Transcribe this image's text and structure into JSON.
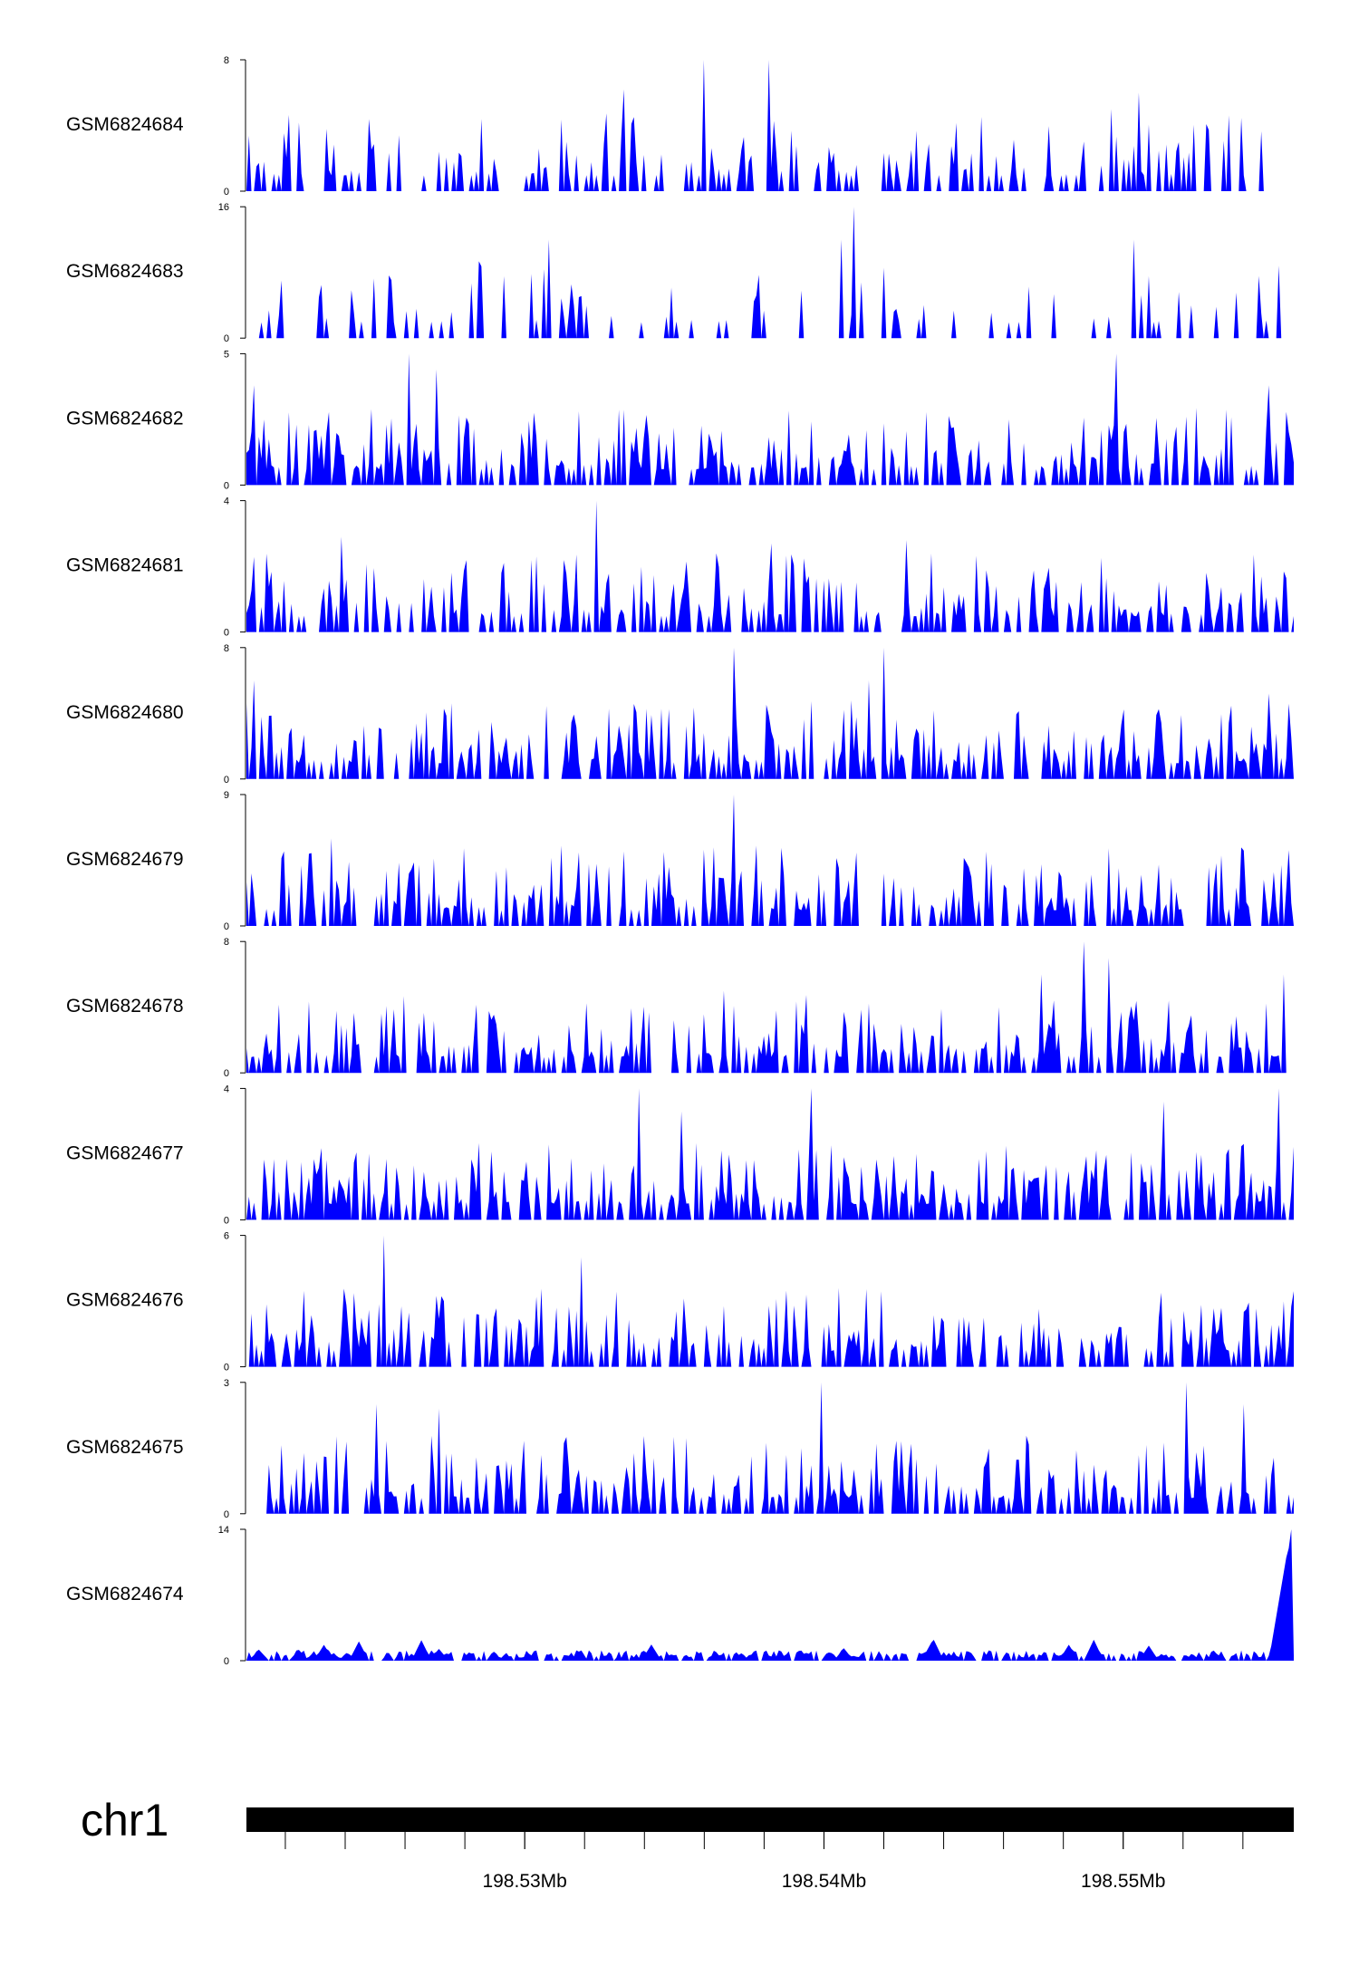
{
  "chart_data": {
    "type": "area",
    "title": "",
    "chromosome": "chr1",
    "x_range_mb": [
      198.5207,
      198.5557
    ],
    "x_ticks": [
      {
        "value": 198.53,
        "label": "198.53Mb"
      },
      {
        "value": 198.54,
        "label": "198.54Mb"
      },
      {
        "value": 198.55,
        "label": "198.55Mb"
      }
    ],
    "minor_tick_step_mb": 0.002,
    "series_color": "#0000ff",
    "tracks": [
      {
        "name": "GSM6824684",
        "ymax": 8,
        "ymin_label": "0",
        "ymax_label": "8",
        "seed": 684,
        "density": 0.35,
        "smooth": false,
        "peaks": [
          [
            0.437,
            8
          ],
          [
            0.498,
            8
          ],
          [
            0.852,
            6
          ],
          [
            0.36,
            6.2
          ],
          [
            0.825,
            5
          ]
        ]
      },
      {
        "name": "GSM6824683",
        "ymax": 16,
        "ymin_label": "0",
        "ymax_label": "16",
        "seed": 683,
        "density": 0.18,
        "smooth": false,
        "peaks": [
          [
            0.289,
            12
          ],
          [
            0.581,
            16
          ],
          [
            0.569,
            12
          ],
          [
            0.848,
            12
          ],
          [
            0.0,
            0.0
          ]
        ]
      },
      {
        "name": "GSM6824682",
        "ymax": 5,
        "ymin_label": "0",
        "ymax_label": "5",
        "seed": 682,
        "density": 0.55,
        "smooth": false,
        "peaks": [
          [
            0.154,
            5
          ],
          [
            0.83,
            5
          ],
          [
            0.182,
            4.4
          ],
          [
            0.975,
            3.8
          ],
          [
            0.007,
            3.8
          ]
        ]
      },
      {
        "name": "GSM6824681",
        "ymax": 4,
        "ymin_label": "0",
        "ymax_label": "4",
        "seed": 681,
        "density": 0.5,
        "smooth": false,
        "peaks": [
          [
            0.333,
            4
          ],
          [
            0.09,
            2.9
          ],
          [
            0.63,
            2.8
          ],
          [
            0.5,
            2.7
          ]
        ]
      },
      {
        "name": "GSM6824680",
        "ymax": 8,
        "ymin_label": "0",
        "ymax_label": "8",
        "seed": 680,
        "density": 0.5,
        "smooth": false,
        "peaks": [
          [
            0.465,
            8
          ],
          [
            0.609,
            8
          ],
          [
            0.595,
            6
          ],
          [
            0.008,
            6
          ],
          [
            0.975,
            5.2
          ]
        ]
      },
      {
        "name": "GSM6824679",
        "ymax": 9,
        "ymin_label": "0",
        "ymax_label": "9",
        "seed": 679,
        "density": 0.45,
        "smooth": false,
        "peaks": [
          [
            0.466,
            9
          ],
          [
            0.082,
            6
          ],
          [
            0.488,
            5.5
          ],
          [
            0.3,
            5.5
          ],
          [
            0.925,
            4.3
          ]
        ]
      },
      {
        "name": "GSM6824678",
        "ymax": 8,
        "ymin_label": "0",
        "ymax_label": "8",
        "seed": 678,
        "density": 0.5,
        "smooth": false,
        "peaks": [
          [
            0.8,
            8
          ],
          [
            0.823,
            7
          ],
          [
            0.76,
            6
          ],
          [
            0.99,
            6
          ],
          [
            0.455,
            5
          ]
        ]
      },
      {
        "name": "GSM6824677",
        "ymax": 4,
        "ymin_label": "0",
        "ymax_label": "4",
        "seed": 677,
        "density": 0.6,
        "smooth": false,
        "peaks": [
          [
            0.375,
            4
          ],
          [
            0.54,
            4
          ],
          [
            0.985,
            4
          ],
          [
            0.415,
            3.3
          ],
          [
            0.877,
            3.6
          ]
        ]
      },
      {
        "name": "GSM6824676",
        "ymax": 6,
        "ymin_label": "0",
        "ymax_label": "6",
        "seed": 676,
        "density": 0.5,
        "smooth": false,
        "peaks": [
          [
            0.132,
            6
          ],
          [
            0.319,
            5
          ],
          [
            0.278,
            3.2
          ],
          [
            0.118,
            2.6
          ]
        ]
      },
      {
        "name": "GSM6824675",
        "ymax": 3,
        "ymin_label": "0",
        "ymax_label": "3",
        "seed": 675,
        "density": 0.5,
        "smooth": false,
        "peaks": [
          [
            0.548,
            3
          ],
          [
            0.897,
            3
          ],
          [
            0.124,
            2.5
          ],
          [
            0.183,
            2.4
          ],
          [
            0.953,
            2.5
          ]
        ]
      },
      {
        "name": "GSM6824674",
        "ymax": 14,
        "ymin_label": "0",
        "ymax_label": "14",
        "seed": 674,
        "density": 1.0,
        "smooth": true,
        "peaks": [
          [
            0.997,
            14
          ],
          [
            0.994,
            11
          ]
        ]
      }
    ]
  }
}
